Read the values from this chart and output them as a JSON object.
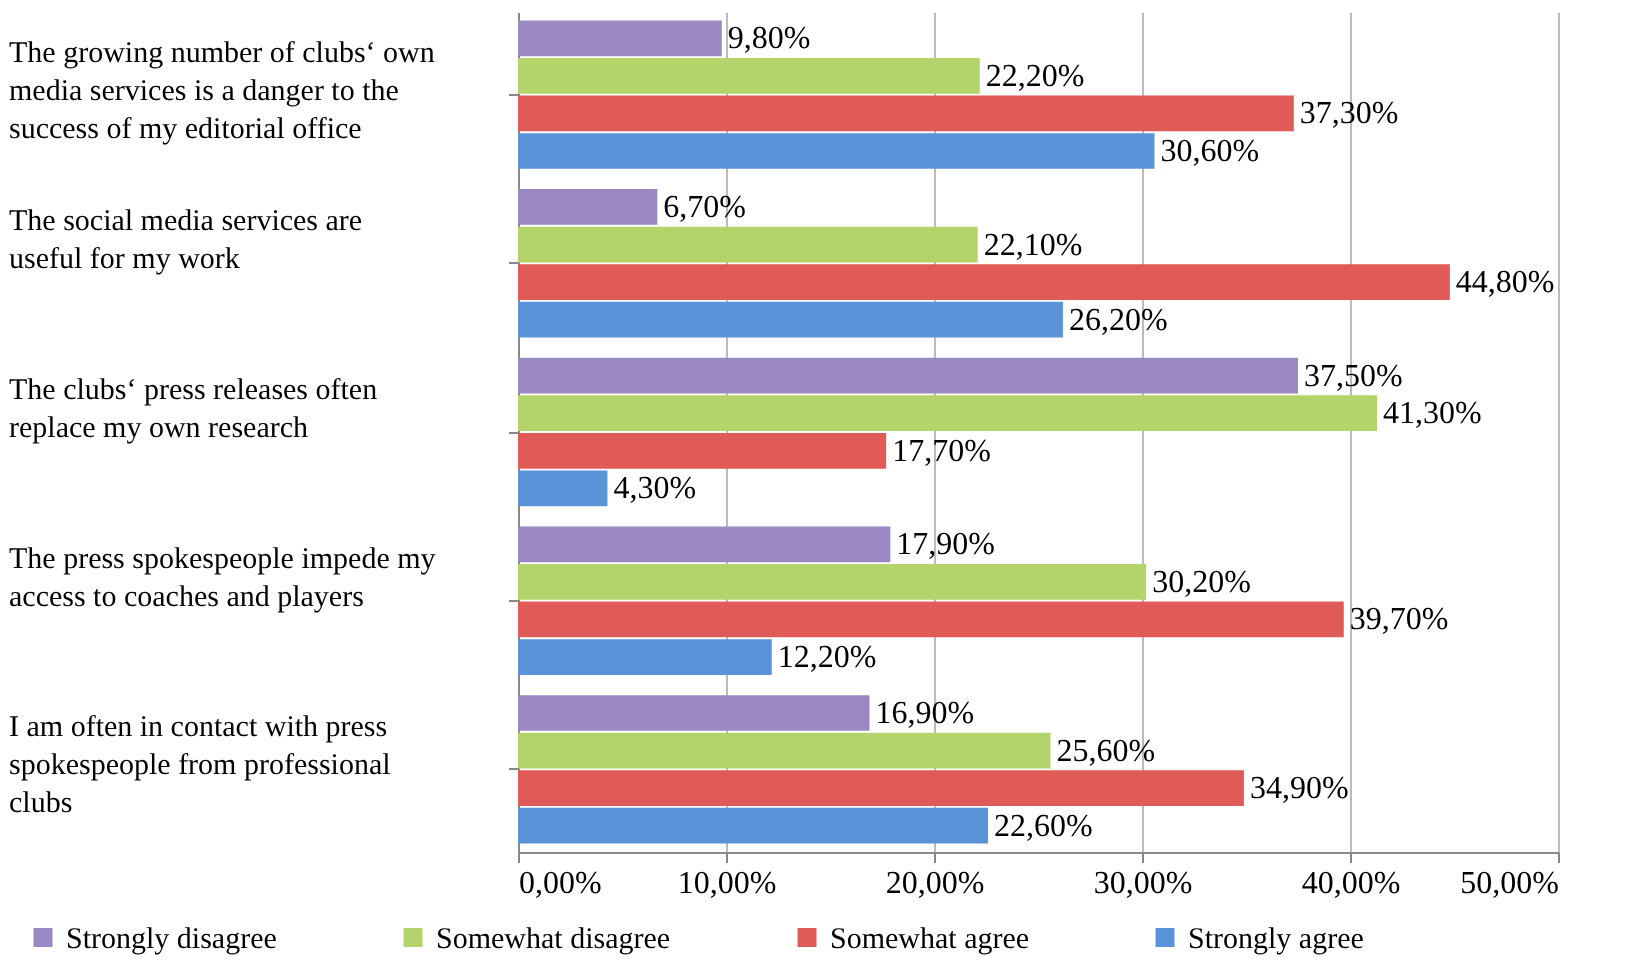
{
  "chart_data": {
    "type": "bar",
    "orientation": "horizontal",
    "categories": [
      "The growing number of clubs‘ own media services is a danger to the success of my editorial office",
      "The social media services are useful for my work",
      "The clubs‘ press releases often replace my own research",
      "The press spokespeople impede my access to coaches and players",
      "I am often in contact with press spokespeople from professional clubs"
    ],
    "series": [
      {
        "name": "Strongly disagree",
        "color": "#9b89c4",
        "values": [
          9.8,
          6.7,
          37.5,
          17.9,
          16.9
        ],
        "value_labels": [
          "9,80%",
          "6,70%",
          "37,50%",
          "17,90%",
          "16,90%"
        ]
      },
      {
        "name": "Somewhat disagree",
        "color": "#b3d36b",
        "values": [
          22.2,
          22.1,
          41.3,
          30.2,
          25.6
        ],
        "value_labels": [
          "22,20%",
          "22,10%",
          "41,30%",
          "30,20%",
          "25,60%"
        ]
      },
      {
        "name": "Somewhat agree",
        "color": "#e05a58",
        "values": [
          37.3,
          44.8,
          17.7,
          39.7,
          34.9
        ],
        "value_labels": [
          "37,30%",
          "44,80%",
          "17,70%",
          "39,70%",
          "34,90%"
        ]
      },
      {
        "name": "Strongly agree",
        "color": "#5b93d8",
        "values": [
          30.6,
          26.2,
          4.3,
          12.2,
          22.6
        ],
        "value_labels": [
          "30,60%",
          "26,20%",
          "4,30%",
          "12,20%",
          "22,60%"
        ]
      }
    ],
    "xlim": [
      0,
      50
    ],
    "xticks": [
      {
        "value": 0,
        "label": "0,00%"
      },
      {
        "value": 10,
        "label": "10,00%"
      },
      {
        "value": 20,
        "label": "20,00%"
      },
      {
        "value": 30,
        "label": "30,00%"
      },
      {
        "value": 40,
        "label": "40,00%"
      },
      {
        "value": 50,
        "label": "50,00%"
      }
    ],
    "grid": "x",
    "legend": "bottom"
  }
}
